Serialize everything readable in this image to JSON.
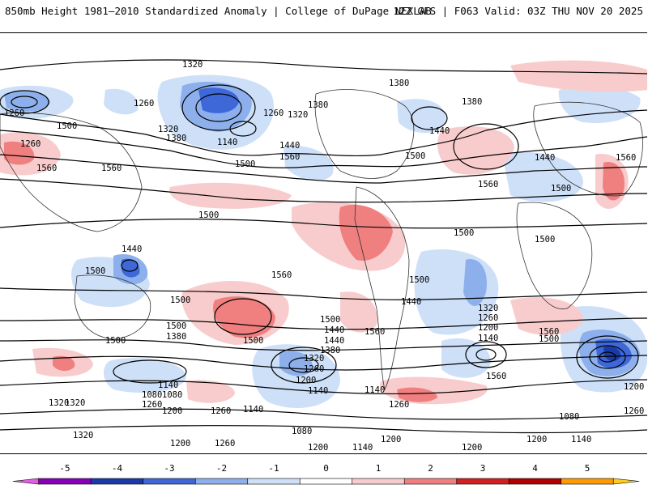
{
  "header": {
    "title_left": "850mb Height 1981–2010 Standardized Anomaly | College of DuPage NEXLAB",
    "title_right": "12Z GFS | F063 Valid: 03Z THU NOV 20 2025"
  },
  "colorbar": {
    "ticks": [
      "-5",
      "-4",
      "-3",
      "-2",
      "-1",
      "0",
      "1",
      "2",
      "3",
      "4",
      "5"
    ],
    "colors": [
      "#e060e0",
      "#8a00b8",
      "#1a3aa8",
      "#3e68d8",
      "#8db0ec",
      "#cde0f8",
      "#ffffff",
      "#f8cccc",
      "#f08080",
      "#d02020",
      "#b00000",
      "#ff9a00",
      "#ffcc20"
    ]
  },
  "map": {
    "contour_labels": [
      "1320",
      "1380",
      "1380",
      "1380",
      "1260",
      "1260",
      "1260",
      "1320",
      "1320",
      "1440",
      "1500",
      "1380",
      "1140",
      "1440",
      "1560",
      "1500",
      "1500",
      "1440",
      "1500",
      "1560",
      "1560",
      "1560",
      "1560",
      "1500",
      "1440",
      "1500",
      "1500",
      "1560",
      "1500",
      "1500",
      "1500",
      "1500",
      "1500",
      "1500",
      "1440",
      "1380",
      "1560",
      "1500",
      "1440",
      "1320",
      "1260",
      "1200",
      "1140",
      "1560",
      "1560",
      "1500",
      "1440",
      "1380",
      "1320",
      "1260",
      "1200",
      "1140",
      "1080",
      "1260",
      "1200",
      "1140",
      "1080",
      "1260",
      "1320",
      "1320",
      "1260",
      "1200",
      "1140",
      "1080",
      "1200",
      "1140",
      "1200",
      "1260",
      "1140",
      "1200",
      "1200",
      "1260",
      "1080",
      "1200",
      "1140",
      "1260",
      "1320"
    ]
  }
}
